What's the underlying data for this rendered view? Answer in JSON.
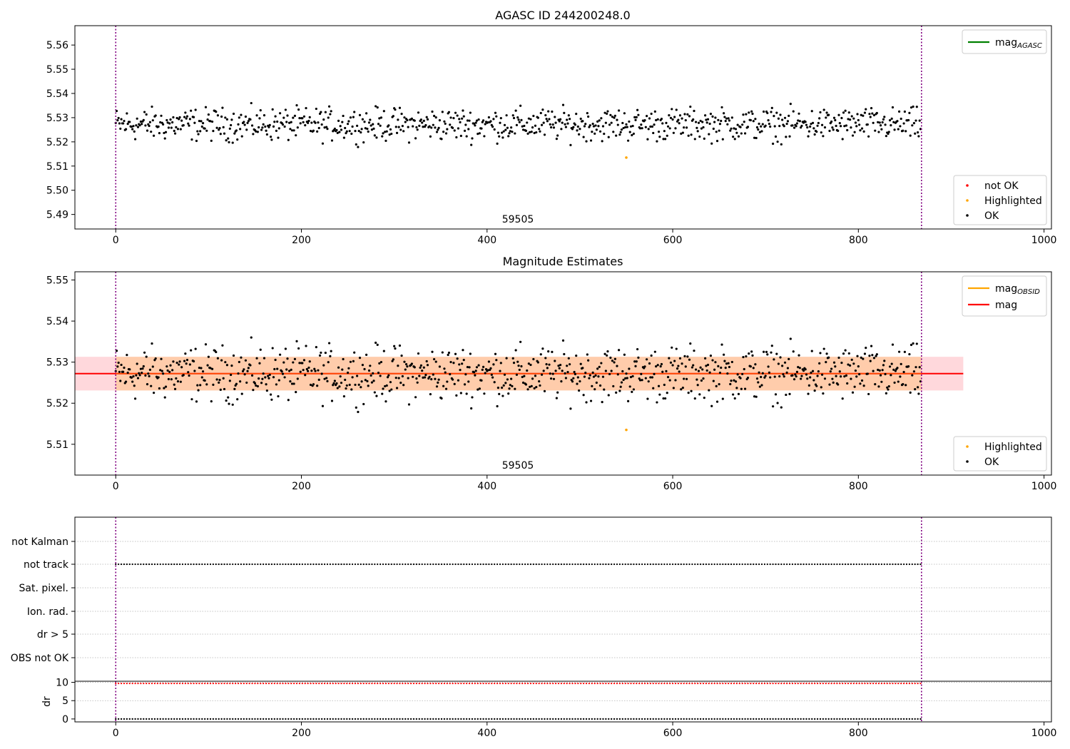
{
  "figure": {
    "top_title": "AGASC ID 244200248.0",
    "middle_title": "Magnitude Estimates",
    "obs_label": "59505"
  },
  "chart_data": [
    {
      "type": "scatter",
      "title": "AGASC ID 244200248.0",
      "xlim": [
        -44,
        1008
      ],
      "ylim": [
        5.484,
        5.568
      ],
      "xticks": [
        0,
        200,
        400,
        600,
        800,
        1000
      ],
      "yticks": [
        5.49,
        5.5,
        5.51,
        5.52,
        5.53,
        5.54,
        5.55,
        5.56
      ],
      "ytick_labels": [
        "5.49",
        "5.50",
        "5.51",
        "5.52",
        "5.53",
        "5.54",
        "5.55",
        "5.56"
      ],
      "grid": false,
      "annotation": "59505",
      "vlines": [
        0,
        868
      ],
      "line_legend": [
        {
          "name": "mag",
          "sub": "AGASC",
          "color": "#008000"
        }
      ],
      "point_legend": [
        {
          "name": "not OK",
          "color": "#ff0000"
        },
        {
          "name": "Highlighted",
          "color": "#ffa500"
        },
        {
          "name": "OK",
          "color": "#000000"
        }
      ],
      "legend_placement": [
        "top-right",
        "bottom-right"
      ],
      "series": [
        {
          "name": "OK",
          "color": "#000000",
          "n": 868,
          "center": 5.5272,
          "spread": 0.0082,
          "min": 5.5165,
          "max": 5.5375
        },
        {
          "name": "Highlighted",
          "color": "#ffa500",
          "x": [
            550
          ],
          "y": [
            5.5135
          ]
        },
        {
          "name": "not OK",
          "color": "#ff0000",
          "x": [],
          "y": []
        }
      ]
    },
    {
      "type": "scatter",
      "title": "Magnitude Estimates",
      "xlim": [
        -44,
        1008
      ],
      "ylim": [
        5.5025,
        5.552
      ],
      "xticks": [
        0,
        200,
        400,
        600,
        800,
        1000
      ],
      "yticks": [
        5.51,
        5.52,
        5.53,
        5.54,
        5.55
      ],
      "ytick_labels": [
        "5.51",
        "5.52",
        "5.53",
        "5.54",
        "5.55"
      ],
      "grid": false,
      "annotation": "59505",
      "vlines": [
        0,
        868
      ],
      "mag": 5.5272,
      "band": [
        5.5231,
        5.5313
      ],
      "band_x": [
        -44,
        913
      ],
      "line_legend": [
        {
          "name": "mag",
          "sub": "OBSID",
          "color": "#ffa500"
        },
        {
          "name": "mag",
          "sub": "",
          "color": "#ff0000"
        }
      ],
      "point_legend": [
        {
          "name": "Highlighted",
          "color": "#ffa500"
        },
        {
          "name": "OK",
          "color": "#000000"
        }
      ],
      "legend_placement": [
        "top-right",
        "bottom-right"
      ],
      "series": [
        {
          "name": "OK",
          "color": "#000000",
          "n": 868,
          "center": 5.5272,
          "spread": 0.0082,
          "min": 5.5165,
          "max": 5.5375
        },
        {
          "name": "Highlighted",
          "color": "#ffa500",
          "x": [
            550
          ],
          "y": [
            5.5135
          ]
        }
      ]
    },
    {
      "type": "scatter",
      "title": "",
      "xlim": [
        -44,
        1008
      ],
      "categories": [
        "not Kalman",
        "not track",
        "Sat. pixel.",
        "Ion. rad.",
        "dr > 5",
        "OBS not OK"
      ],
      "flagged_category": "not track",
      "flag_range": [
        0,
        868
      ],
      "grid": true,
      "vlines": [
        0,
        868
      ]
    },
    {
      "type": "scatter",
      "title": "",
      "ylabel": "dr",
      "xlim": [
        -44,
        1008
      ],
      "ylim": [
        -0.8,
        10.3
      ],
      "xticks": [
        0,
        200,
        400,
        600,
        800,
        1000
      ],
      "yticks": [
        0,
        5,
        10
      ],
      "ytick_labels": [
        "0",
        "5",
        "10"
      ],
      "grid": true,
      "vlines": [
        0,
        868
      ],
      "series": [
        {
          "name": "",
          "color": "#ff0000",
          "n": 868,
          "constant": 9.7
        },
        {
          "name": "",
          "color": "#000000",
          "n": 868,
          "constant": 0
        }
      ]
    }
  ]
}
